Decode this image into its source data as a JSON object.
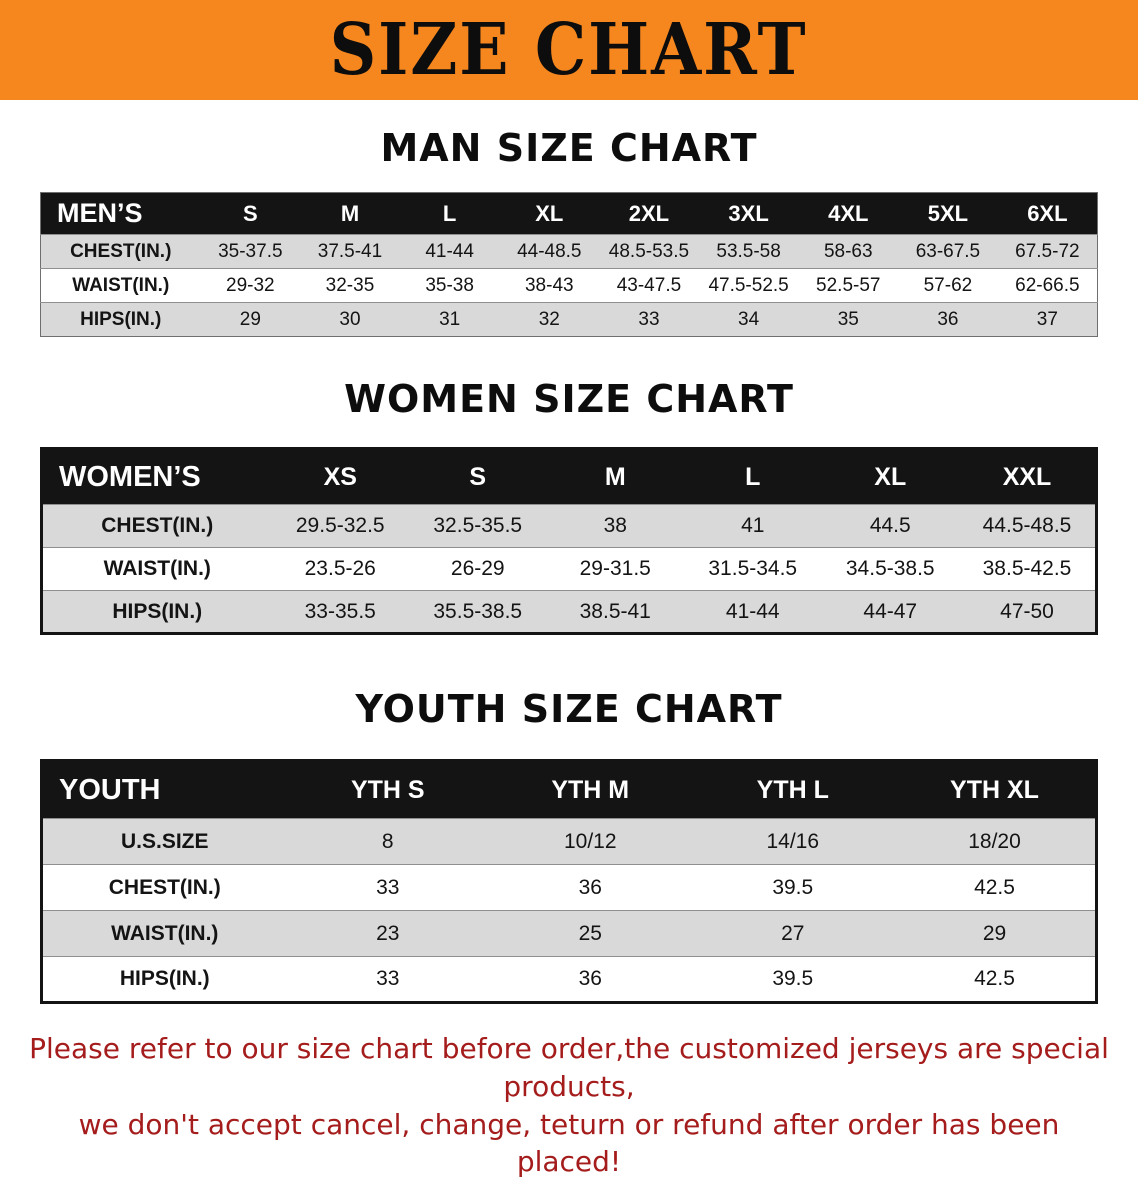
{
  "colors": {
    "banner_orange": "#f6871f",
    "header_bg": "#141414",
    "row_gray": "#d9d9d9",
    "notice_red": "#a51c1c"
  },
  "banner": {
    "title": "SIZE CHART"
  },
  "sections": {
    "men": {
      "heading": "MAN SIZE CHART"
    },
    "women": {
      "heading": "WOMEN SIZE CHART"
    },
    "youth": {
      "heading": "YOUTH SIZE CHART"
    }
  },
  "tables": {
    "men": {
      "header": [
        "MEN’S",
        "S",
        "M",
        "L",
        "XL",
        "2XL",
        "3XL",
        "4XL",
        "5XL",
        "6XL"
      ],
      "rows": [
        [
          "CHEST(IN.)",
          "35-37.5",
          "37.5-41",
          "41-44",
          "44-48.5",
          "48.5-53.5",
          "53.5-58",
          "58-63",
          "63-67.5",
          "67.5-72"
        ],
        [
          "WAIST(IN.)",
          "29-32",
          "32-35",
          "35-38",
          "38-43",
          "43-47.5",
          "47.5-52.5",
          "52.5-57",
          "57-62",
          "62-66.5"
        ],
        [
          "HIPS(IN.)",
          "29",
          "30",
          "31",
          "32",
          "33",
          "34",
          "35",
          "36",
          "37"
        ]
      ]
    },
    "women": {
      "header": [
        "WOMEN’S",
        "XS",
        "S",
        "M",
        "L",
        "XL",
        "XXL"
      ],
      "rows": [
        [
          "CHEST(IN.)",
          "29.5-32.5",
          "32.5-35.5",
          "38",
          "41",
          "44.5",
          "44.5-48.5"
        ],
        [
          "WAIST(IN.)",
          "23.5-26",
          "26-29",
          "29-31.5",
          "31.5-34.5",
          "34.5-38.5",
          "38.5-42.5"
        ],
        [
          "HIPS(IN.)",
          "33-35.5",
          "35.5-38.5",
          "38.5-41",
          "41-44",
          "44-47",
          "47-50"
        ]
      ]
    },
    "youth": {
      "header": [
        "YOUTH",
        "YTH S",
        "YTH M",
        "YTH L",
        "YTH XL"
      ],
      "rows": [
        [
          "U.S.SIZE",
          "8",
          "10/12",
          "14/16",
          "18/20"
        ],
        [
          "CHEST(IN.)",
          "33",
          "36",
          "39.5",
          "42.5"
        ],
        [
          "WAIST(IN.)",
          "23",
          "25",
          "27",
          "29"
        ],
        [
          "HIPS(IN.)",
          "33",
          "36",
          "39.5",
          "42.5"
        ]
      ]
    }
  },
  "notice": {
    "line1": "Please refer to our size chart before order,the customized jerseys are special products,",
    "line2": "we don't accept cancel, change, teturn or refund after order has been placed!"
  }
}
